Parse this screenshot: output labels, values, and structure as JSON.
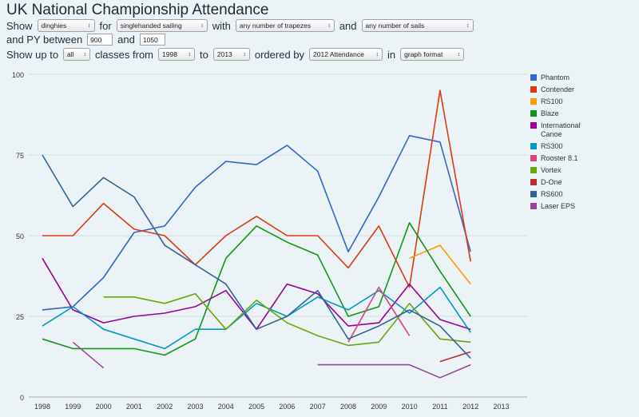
{
  "title": "UK National Championship Attendance",
  "controls": {
    "row1": {
      "show_label": "Show",
      "type_value": "dinghies",
      "for_label": "for",
      "sailing_value": "singlehanded sailing",
      "with_label": "with",
      "trapezes_value": "any number of trapezes",
      "and_label": "and",
      "sails_value": "any number of sails"
    },
    "row2": {
      "py_label": "and PY between",
      "py_min": "900",
      "and_label": "and",
      "py_max": "1050"
    },
    "row3": {
      "show_upto_label": "Show up to",
      "count_value": "all",
      "classes_from_label": "classes from",
      "from_year": "1998",
      "to_label": "to",
      "to_year": "2013",
      "ordered_by_label": "ordered by",
      "order_value": "2012 Attendance",
      "in_label": "in",
      "format_value": "graph format"
    }
  },
  "chart_data": {
    "type": "line",
    "title": "",
    "xlabel": "",
    "ylabel": "",
    "ylim": [
      0,
      100
    ],
    "yticks": [
      0,
      25,
      50,
      75,
      100
    ],
    "x": [
      1998,
      1999,
      2000,
      2001,
      2002,
      2003,
      2004,
      2005,
      2006,
      2007,
      2008,
      2009,
      2010,
      2011,
      2012,
      2013
    ],
    "x_labels": [
      "1998",
      "1999",
      "2000",
      "2001",
      "2002",
      "2003",
      "2004",
      "2005",
      "2006",
      "2007",
      "2008",
      "2009",
      "2010",
      "2011",
      "2012",
      "2013"
    ],
    "y_labels": [
      "0",
      "25",
      "50",
      "75",
      "100"
    ],
    "grid": true,
    "legend_position": "right",
    "series": [
      {
        "name": "Phantom",
        "color": "#3366cc",
        "values": [
          27,
          28,
          37,
          51,
          53,
          65,
          73,
          72,
          78,
          70,
          45,
          62,
          81,
          79,
          45,
          null
        ]
      },
      {
        "name": "Contender",
        "color": "#dc3912",
        "values": [
          50,
          50,
          60,
          52,
          50,
          41,
          50,
          56,
          50,
          50,
          40,
          53,
          34,
          95,
          42,
          null
        ]
      },
      {
        "name": "RS100",
        "color": "#ff9900",
        "values": [
          null,
          null,
          null,
          null,
          null,
          null,
          null,
          null,
          null,
          null,
          null,
          null,
          43,
          47,
          35,
          null
        ]
      },
      {
        "name": "Blaze",
        "color": "#109618",
        "values": [
          18,
          15,
          15,
          15,
          13,
          18,
          43,
          53,
          48,
          44,
          25,
          28,
          54,
          39,
          25,
          null
        ]
      },
      {
        "name": "International Canoe",
        "color": "#990099",
        "values": [
          43,
          27,
          23,
          25,
          26,
          28,
          33,
          21,
          35,
          32,
          22,
          23,
          35,
          24,
          21,
          null
        ]
      },
      {
        "name": "RS300",
        "color": "#0099c6",
        "values": [
          22,
          28,
          21,
          18,
          15,
          21,
          21,
          29,
          25,
          31,
          27,
          33,
          26,
          34,
          20,
          null
        ]
      },
      {
        "name": "Rooster 8.1",
        "color": "#dd4477",
        "values": [
          null,
          null,
          null,
          null,
          null,
          null,
          null,
          null,
          null,
          null,
          17,
          34,
          19,
          null,
          null,
          null
        ]
      },
      {
        "name": "Vortex",
        "color": "#66aa00",
        "values": [
          null,
          null,
          31,
          31,
          29,
          32,
          21,
          30,
          23,
          19,
          16,
          17,
          29,
          18,
          17,
          null
        ]
      },
      {
        "name": "D-One",
        "color": "#b82e2e",
        "values": [
          null,
          null,
          null,
          null,
          null,
          null,
          null,
          null,
          null,
          null,
          null,
          null,
          null,
          11,
          14,
          null
        ]
      },
      {
        "name": "RS600",
        "color": "#316395",
        "values": [
          75,
          59,
          68,
          62,
          47,
          41,
          35,
          21,
          25,
          33,
          18,
          22,
          27,
          22,
          12,
          null
        ]
      },
      {
        "name": "Laser EPS",
        "color": "#994499",
        "values": [
          null,
          17,
          9,
          null,
          null,
          null,
          null,
          null,
          null,
          10,
          10,
          10,
          10,
          6,
          10,
          null
        ]
      }
    ]
  }
}
